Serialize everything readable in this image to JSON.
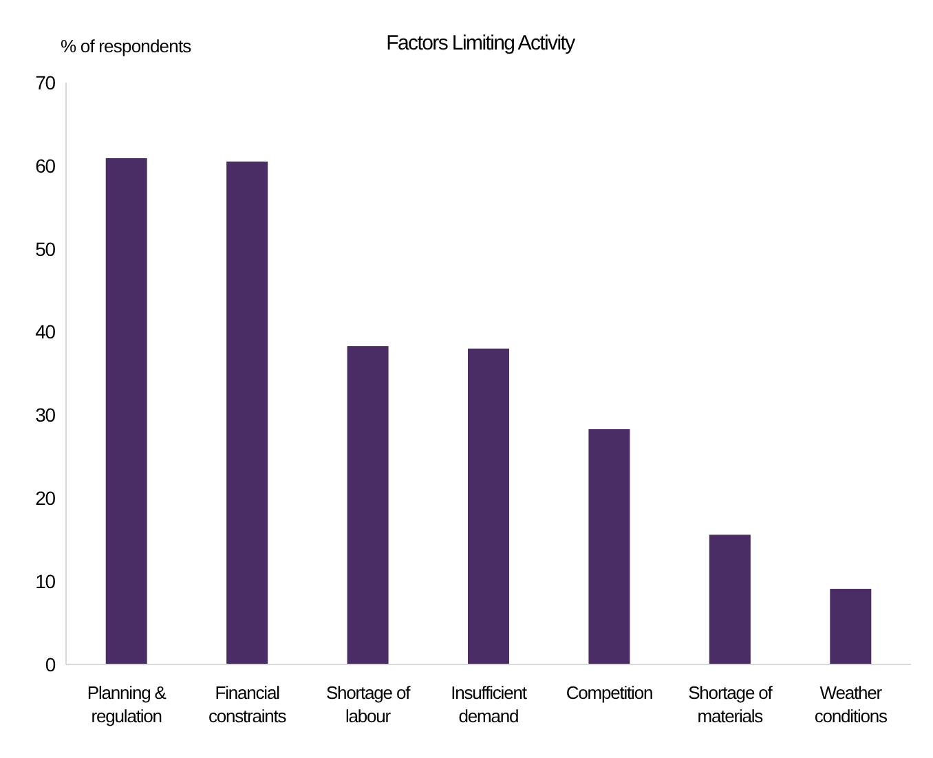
{
  "chart_data": {
    "type": "bar",
    "title": "Factors Limiting Activity",
    "ylabel": "% of respondents",
    "categories": [
      "Planning & regulation",
      "Financial constraints",
      "Shortage of labour",
      "Insufficient demand",
      "Competition",
      "Shortage of materials",
      "Weather conditions"
    ],
    "values": [
      60.9,
      60.5,
      38.3,
      38.0,
      28.3,
      15.6,
      9.1
    ],
    "color": "#4a2d65",
    "ylim": [
      0,
      70
    ],
    "yticks": [
      0,
      10,
      20,
      30,
      40,
      50,
      60,
      70
    ],
    "grid": false
  }
}
